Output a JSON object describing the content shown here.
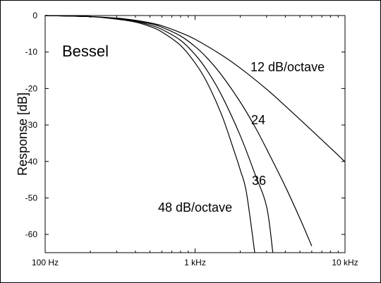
{
  "chart_data": {
    "type": "line",
    "title": "Bessel",
    "xlabel": "",
    "ylabel": "Response [dB]",
    "xscale": "log",
    "xlim": [
      100,
      10000
    ],
    "ylim": [
      -65,
      0
    ],
    "x_ticks": [
      {
        "value": 100,
        "label": "100 Hz"
      },
      {
        "value": 1000,
        "label": "1 kHz"
      },
      {
        "value": 10000,
        "label": "10 kHz"
      }
    ],
    "y_ticks": [
      {
        "value": 0,
        "label": "0"
      },
      {
        "value": -10,
        "label": "-10"
      },
      {
        "value": -20,
        "label": "-20"
      },
      {
        "value": -30,
        "label": "-30"
      },
      {
        "value": -40,
        "label": "-40"
      },
      {
        "value": -50,
        "label": "-50"
      },
      {
        "value": -60,
        "label": "-60"
      }
    ],
    "grid": false,
    "legend": "none",
    "line_color": "#000000",
    "series": [
      {
        "label": "12 dB/octave",
        "x": [
          100,
          200,
          300,
          400,
          500,
          600,
          800,
          1000,
          1500,
          2000,
          3000,
          4000,
          6000,
          8000,
          10000
        ],
        "y": [
          0,
          -0.3,
          -0.7,
          -1.3,
          -2,
          -2.8,
          -4.7,
          -6.5,
          -10.8,
          -14.4,
          -20.2,
          -24.8,
          -31.5,
          -36.3,
          -40.1
        ]
      },
      {
        "label": "24",
        "x": [
          100,
          200,
          300,
          400,
          500,
          600,
          800,
          1000,
          1200,
          1500,
          2000,
          2500,
          3000,
          4000,
          5000,
          6000
        ],
        "y": [
          0,
          -0.3,
          -0.8,
          -1.4,
          -2.2,
          -3.2,
          -5.6,
          -8.5,
          -11.6,
          -16.3,
          -23.7,
          -30.4,
          -36.6,
          -46.9,
          -55.6,
          -63.2
        ]
      },
      {
        "label": "36",
        "x": [
          100,
          200,
          300,
          400,
          500,
          600,
          800,
          1000,
          1200,
          1500,
          2000,
          2500,
          3000,
          3300
        ],
        "y": [
          0,
          -0.3,
          -0.9,
          -1.6,
          -2.6,
          -3.8,
          -6.8,
          -10.7,
          -15,
          -21.8,
          -32.9,
          -43.3,
          -52.4,
          -65
        ]
      },
      {
        "label": "48 dB/octave",
        "x": [
          100,
          200,
          300,
          400,
          500,
          600,
          800,
          1000,
          1200,
          1500,
          1800,
          2000,
          2200,
          2500
        ],
        "y": [
          0,
          -0.3,
          -1,
          -1.8,
          -3,
          -4.5,
          -8.2,
          -13,
          -18.3,
          -27.1,
          -36.5,
          -42.3,
          -48.5,
          -65
        ]
      }
    ]
  }
}
